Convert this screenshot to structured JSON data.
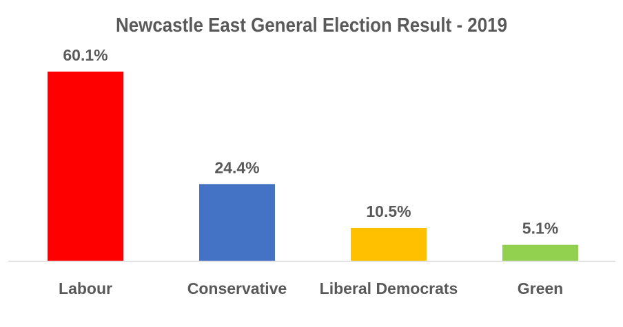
{
  "chart_data": {
    "type": "bar",
    "title": "Newcastle East General Election Result - 2019",
    "categories": [
      "Labour",
      "Conservative",
      "Liberal Democrats",
      "Green"
    ],
    "values": [
      60.1,
      24.4,
      10.5,
      5.1
    ],
    "data_labels": [
      "60.1%",
      "24.4%",
      "10.5%",
      "5.1%"
    ],
    "colors": [
      "#FF0000",
      "#4472C4",
      "#FFC000",
      "#92D050"
    ],
    "xlabel": "",
    "ylabel": "",
    "ylim": [
      0,
      60.1
    ],
    "grid": false,
    "legend": "none"
  }
}
